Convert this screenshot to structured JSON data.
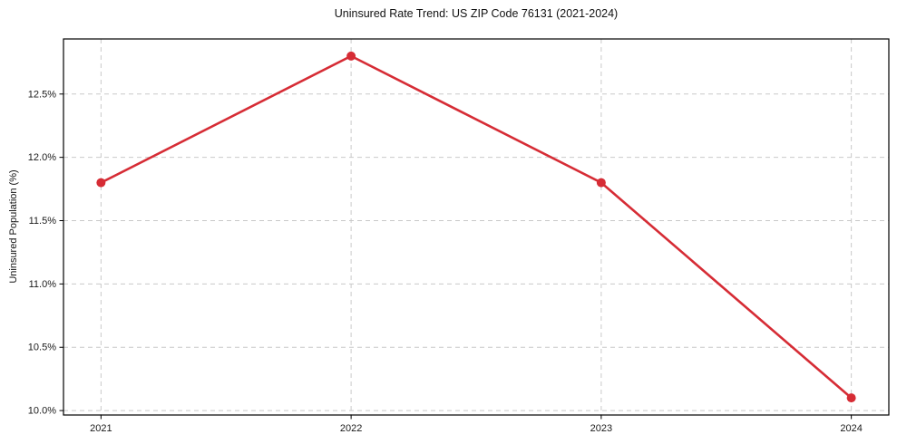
{
  "chart": {
    "title": "Uninsured Rate Trend: US ZIP Code 76131 (2021-2024)",
    "ylabel": "Uninsured Population (%)"
  },
  "chart_data": {
    "type": "line",
    "title": "Uninsured Rate Trend: US ZIP Code 76131 (2021-2024)",
    "xlabel": "",
    "ylabel": "Uninsured Population (%)",
    "categories": [
      "2021",
      "2022",
      "2023",
      "2024"
    ],
    "x": [
      2021,
      2022,
      2023,
      2024
    ],
    "values": [
      11.8,
      12.8,
      11.8,
      10.1
    ],
    "series": [
      {
        "name": "Uninsured rate",
        "values": [
          11.8,
          12.8,
          11.8,
          10.1
        ]
      }
    ],
    "value_format": "percent",
    "xlim": [
      2020.85,
      2024.15
    ],
    "ylim": [
      9.965,
      12.935
    ],
    "yticks": [
      10.0,
      10.5,
      11.0,
      11.5,
      12.0,
      12.5
    ],
    "ytick_labels": [
      "10.0%",
      "10.5%",
      "11.0%",
      "11.5%",
      "12.0%",
      "12.5%"
    ],
    "grid": true,
    "grid_style": "dashed",
    "legend": "none",
    "line_color": "#d62c35",
    "marker": "circle",
    "marker_size": 5,
    "line_width": 2.6,
    "grid_color": "#c9c9c9",
    "axis_color": "#000000",
    "tick_label_color": "#1a1a1a",
    "background": "#ffffff"
  }
}
